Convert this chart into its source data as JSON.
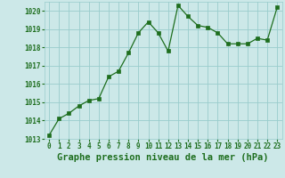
{
  "x": [
    0,
    1,
    2,
    3,
    4,
    5,
    6,
    7,
    8,
    9,
    10,
    11,
    12,
    13,
    14,
    15,
    16,
    17,
    18,
    19,
    20,
    21,
    22,
    23
  ],
  "y": [
    1013.2,
    1014.1,
    1014.4,
    1014.8,
    1015.1,
    1015.2,
    1016.4,
    1016.7,
    1017.7,
    1018.8,
    1019.4,
    1018.8,
    1017.8,
    1020.3,
    1019.7,
    1019.2,
    1019.1,
    1018.8,
    1018.2,
    1018.2,
    1018.2,
    1018.5,
    1018.4,
    1020.2
  ],
  "ylim": [
    1013,
    1020.5
  ],
  "yticks": [
    1013,
    1014,
    1015,
    1016,
    1017,
    1018,
    1019,
    1020
  ],
  "xticks": [
    0,
    1,
    2,
    3,
    4,
    5,
    6,
    7,
    8,
    9,
    10,
    11,
    12,
    13,
    14,
    15,
    16,
    17,
    18,
    19,
    20,
    21,
    22,
    23
  ],
  "xlabel": "Graphe pression niveau de la mer (hPa)",
  "line_color": "#1e6e1e",
  "marker": "s",
  "marker_size": 2.2,
  "background_color": "#cce8e8",
  "grid_color": "#99cccc",
  "tick_color": "#1e6e1e",
  "label_color": "#1e6e1e",
  "tick_fontsize": 5.5,
  "xlabel_fontsize": 7.5
}
